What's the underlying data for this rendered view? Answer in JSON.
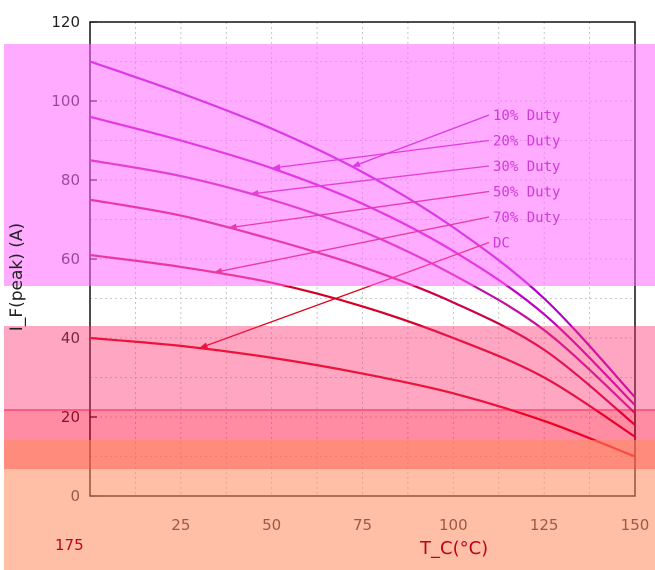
{
  "chart_data": {
    "type": "line",
    "title": "",
    "xlabel": "T_C(°C)",
    "ylabel": "I_F(peak) (A)",
    "xlim": [
      0,
      150
    ],
    "ylim": [
      0,
      120
    ],
    "x_ticks": [
      "25",
      "50",
      "75",
      "100",
      "125",
      "150"
    ],
    "y_ticks": [
      "0",
      "20",
      "40",
      "60",
      "80",
      "100",
      "120"
    ],
    "extra_x_tick": "175",
    "grid": true,
    "legend_position": "right",
    "series": [
      {
        "name": "10% Duty",
        "x": [
          0,
          25,
          50,
          75,
          100,
          125,
          150
        ],
        "y": [
          110,
          102,
          93,
          82,
          68,
          50,
          25
        ]
      },
      {
        "name": "20% Duty",
        "x": [
          0,
          25,
          50,
          75,
          100,
          125,
          150
        ],
        "y": [
          96,
          90,
          83,
          74,
          62,
          46,
          23
        ]
      },
      {
        "name": "30% Duty",
        "x": [
          0,
          25,
          50,
          75,
          100,
          125,
          150
        ],
        "y": [
          85,
          81,
          75,
          67,
          56,
          42,
          21
        ]
      },
      {
        "name": "50% Duty",
        "x": [
          0,
          25,
          50,
          75,
          100,
          125,
          150
        ],
        "y": [
          75,
          71,
          65,
          58,
          49,
          37,
          18
        ]
      },
      {
        "name": "70% Duty",
        "x": [
          0,
          25,
          50,
          75,
          100,
          125,
          150
        ],
        "y": [
          61,
          58,
          54,
          48,
          40,
          30,
          15
        ]
      },
      {
        "name": "DC",
        "x": [
          0,
          25,
          50,
          75,
          100,
          125,
          150
        ],
        "y": [
          40,
          38,
          35,
          31,
          26,
          19,
          10
        ]
      }
    ]
  }
}
